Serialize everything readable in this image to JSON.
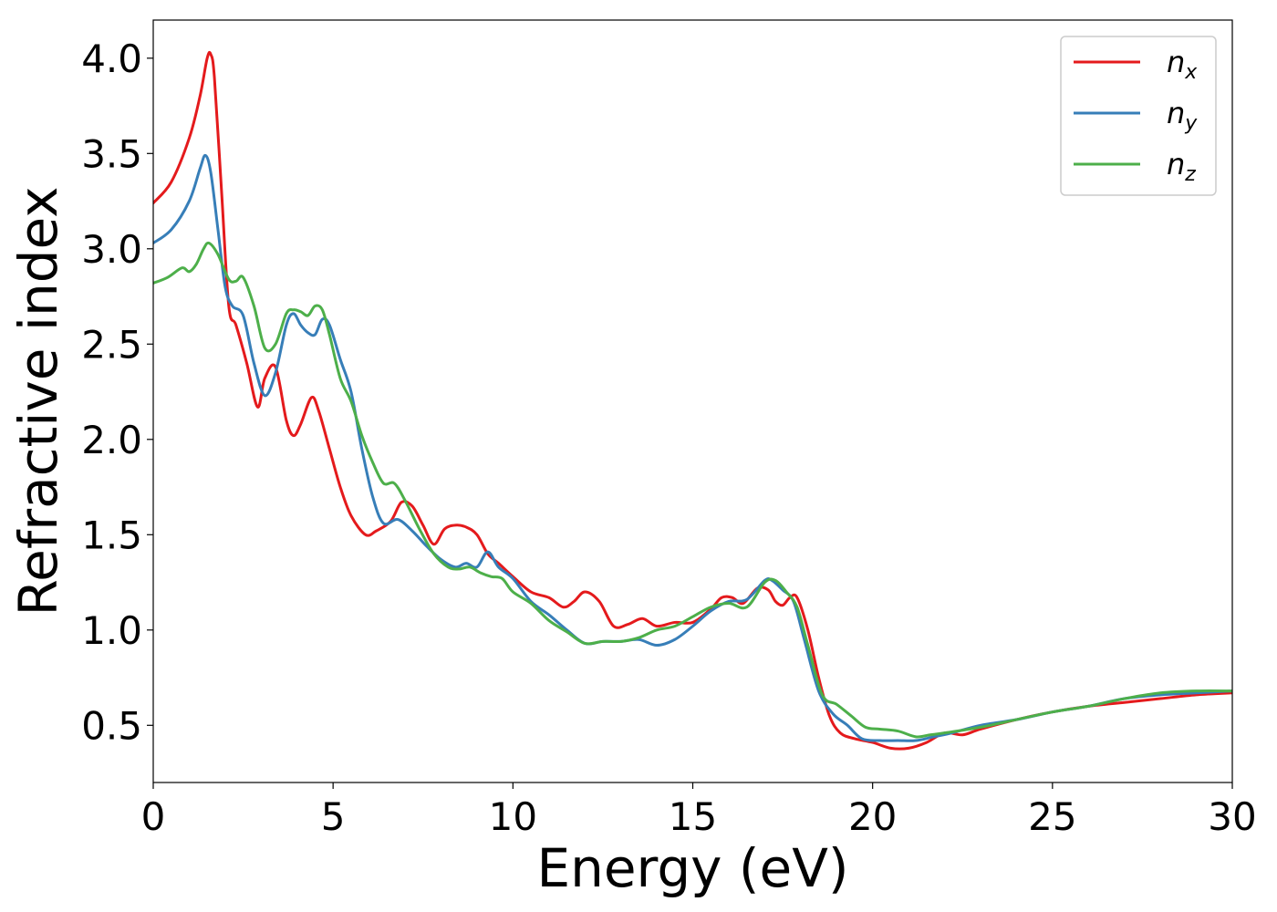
{
  "chart_data": {
    "type": "line",
    "xlabel": "Energy (eV)",
    "ylabel": "Refractive index",
    "xlim": [
      0,
      30
    ],
    "ylim": [
      0.2,
      4.2
    ],
    "xticks": [
      "0",
      "5",
      "10",
      "15",
      "20",
      "25",
      "30"
    ],
    "yticks": [
      "0.5",
      "1.0",
      "1.5",
      "2.0",
      "2.5",
      "3.0",
      "3.5",
      "4.0"
    ],
    "grid": false,
    "legend_position": "top-right",
    "series": [
      {
        "name": "n",
        "subscript": "x",
        "color": "#e41a1c",
        "x": [
          0,
          0.5,
          1.0,
          1.3,
          1.5,
          1.6,
          1.7,
          1.9,
          2.1,
          2.3,
          2.6,
          2.9,
          3.1,
          3.4,
          3.7,
          3.9,
          4.1,
          4.4,
          4.6,
          4.9,
          5.2,
          5.5,
          5.9,
          6.2,
          6.6,
          6.9,
          7.2,
          7.5,
          7.8,
          8.1,
          8.4,
          8.7,
          9.0,
          9.3,
          9.6,
          10.0,
          10.5,
          11.0,
          11.4,
          11.7,
          12.0,
          12.4,
          12.8,
          13.2,
          13.6,
          14.0,
          14.5,
          15.0,
          15.5,
          15.8,
          16.1,
          16.4,
          16.8,
          17.1,
          17.3,
          17.5,
          17.7,
          17.9,
          18.2,
          18.5,
          18.8,
          19.1,
          19.5,
          20.0,
          20.5,
          21.0,
          21.5,
          22.0,
          22.5,
          23.0,
          24.0,
          25.0,
          26.0,
          27.0,
          28.0,
          29.0,
          30.0
        ],
        "y": [
          3.24,
          3.35,
          3.58,
          3.8,
          4.0,
          4.02,
          3.9,
          3.3,
          2.7,
          2.6,
          2.4,
          2.17,
          2.32,
          2.38,
          2.1,
          2.02,
          2.08,
          2.22,
          2.15,
          1.95,
          1.75,
          1.6,
          1.5,
          1.52,
          1.57,
          1.67,
          1.65,
          1.55,
          1.45,
          1.53,
          1.55,
          1.54,
          1.5,
          1.4,
          1.35,
          1.28,
          1.2,
          1.17,
          1.12,
          1.15,
          1.2,
          1.15,
          1.02,
          1.03,
          1.06,
          1.02,
          1.04,
          1.04,
          1.11,
          1.17,
          1.17,
          1.14,
          1.22,
          1.21,
          1.15,
          1.13,
          1.17,
          1.17,
          1.0,
          0.75,
          0.55,
          0.46,
          0.43,
          0.41,
          0.38,
          0.38,
          0.41,
          0.46,
          0.45,
          0.48,
          0.53,
          0.57,
          0.6,
          0.62,
          0.64,
          0.66,
          0.67
        ]
      },
      {
        "name": "n",
        "subscript": "y",
        "color": "#377eb8",
        "x": [
          0,
          0.5,
          1.0,
          1.3,
          1.45,
          1.6,
          1.8,
          2.0,
          2.2,
          2.5,
          2.8,
          3.1,
          3.4,
          3.7,
          3.9,
          4.1,
          4.3,
          4.5,
          4.7,
          4.9,
          5.2,
          5.5,
          5.8,
          6.1,
          6.4,
          6.8,
          7.2,
          7.6,
          8.0,
          8.4,
          8.7,
          9.0,
          9.3,
          9.6,
          10.0,
          10.5,
          11.0,
          11.5,
          12.0,
          12.5,
          13.0,
          13.5,
          14.0,
          14.5,
          15.0,
          15.5,
          16.0,
          16.5,
          17.0,
          17.2,
          17.5,
          17.8,
          18.1,
          18.5,
          18.9,
          19.3,
          19.7,
          20.2,
          20.7,
          21.2,
          21.7,
          22.2,
          23.0,
          24.0,
          25.0,
          26.0,
          27.0,
          28.0,
          29.0,
          30.0
        ],
        "y": [
          3.03,
          3.1,
          3.25,
          3.42,
          3.49,
          3.4,
          3.1,
          2.8,
          2.7,
          2.65,
          2.4,
          2.23,
          2.35,
          2.6,
          2.66,
          2.6,
          2.56,
          2.55,
          2.63,
          2.6,
          2.42,
          2.25,
          1.95,
          1.7,
          1.56,
          1.58,
          1.52,
          1.44,
          1.37,
          1.33,
          1.35,
          1.33,
          1.41,
          1.33,
          1.27,
          1.15,
          1.08,
          1.0,
          0.93,
          0.94,
          0.94,
          0.95,
          0.92,
          0.95,
          1.02,
          1.1,
          1.15,
          1.16,
          1.26,
          1.26,
          1.21,
          1.15,
          0.95,
          0.68,
          0.56,
          0.5,
          0.43,
          0.42,
          0.42,
          0.42,
          0.44,
          0.46,
          0.5,
          0.53,
          0.57,
          0.6,
          0.64,
          0.66,
          0.67,
          0.68
        ]
      },
      {
        "name": "n",
        "subscript": "z",
        "color": "#4daf4a",
        "x": [
          0,
          0.4,
          0.8,
          1.0,
          1.2,
          1.4,
          1.55,
          1.8,
          2.1,
          2.3,
          2.5,
          2.8,
          3.1,
          3.4,
          3.7,
          3.9,
          4.1,
          4.3,
          4.5,
          4.7,
          4.9,
          5.2,
          5.5,
          5.8,
          6.1,
          6.4,
          6.7,
          7.0,
          7.4,
          7.8,
          8.2,
          8.5,
          8.8,
          9.1,
          9.4,
          9.7,
          10.0,
          10.5,
          11.0,
          11.5,
          12.0,
          12.5,
          13.0,
          13.5,
          14.0,
          14.5,
          15.0,
          15.5,
          16.0,
          16.5,
          17.0,
          17.3,
          17.6,
          17.9,
          18.2,
          18.6,
          19.0,
          19.4,
          19.8,
          20.2,
          20.7,
          21.2,
          21.6,
          22.0,
          23.0,
          24.0,
          25.0,
          26.0,
          27.0,
          28.0,
          29.0,
          30.0
        ],
        "y": [
          2.82,
          2.85,
          2.9,
          2.88,
          2.92,
          3.0,
          3.03,
          2.97,
          2.84,
          2.83,
          2.85,
          2.7,
          2.48,
          2.5,
          2.66,
          2.68,
          2.67,
          2.65,
          2.7,
          2.68,
          2.55,
          2.32,
          2.2,
          2.02,
          1.88,
          1.77,
          1.77,
          1.68,
          1.53,
          1.4,
          1.33,
          1.32,
          1.33,
          1.3,
          1.28,
          1.27,
          1.2,
          1.14,
          1.05,
          0.99,
          0.93,
          0.94,
          0.94,
          0.96,
          1.0,
          1.02,
          1.07,
          1.12,
          1.14,
          1.12,
          1.25,
          1.26,
          1.2,
          1.12,
          0.92,
          0.66,
          0.61,
          0.55,
          0.49,
          0.48,
          0.47,
          0.44,
          0.45,
          0.46,
          0.49,
          0.53,
          0.57,
          0.6,
          0.64,
          0.67,
          0.68,
          0.68
        ]
      }
    ]
  }
}
